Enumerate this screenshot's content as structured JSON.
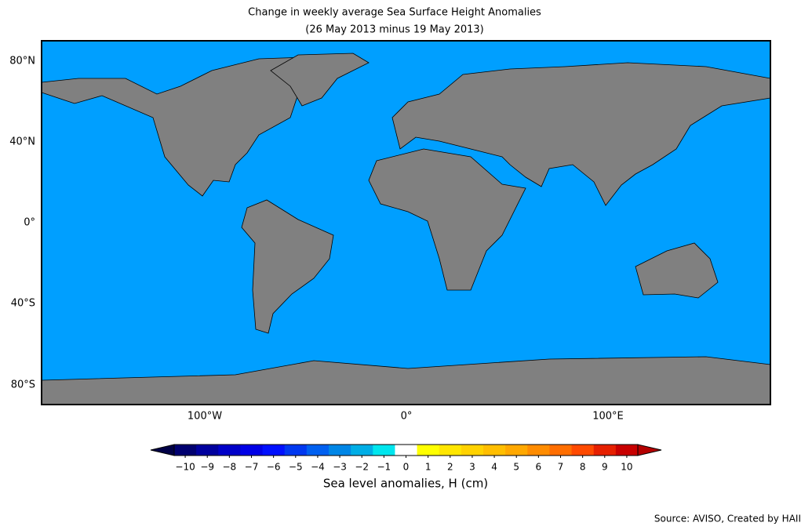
{
  "title": "Change in weekly average Sea Surface Height Anomalies",
  "subtitle": "(26 May 2013 minus 19 May 2013)",
  "axes": {
    "lat_labels": [
      "80°N",
      "40°N",
      "0°",
      "40°S",
      "80°S"
    ],
    "lon_labels": [
      "100°W",
      "0°",
      "100°E"
    ]
  },
  "colorbar": {
    "ticks": [
      {
        "value": -10,
        "label": "−10"
      },
      {
        "value": -9,
        "label": "−9"
      },
      {
        "value": -8,
        "label": "−8"
      },
      {
        "value": -7,
        "label": "−7"
      },
      {
        "value": -6,
        "label": "−6"
      },
      {
        "value": -5,
        "label": "−5"
      },
      {
        "value": -4,
        "label": "−4"
      },
      {
        "value": -3,
        "label": "−3"
      },
      {
        "value": -2,
        "label": "−2"
      },
      {
        "value": -1,
        "label": "−1"
      },
      0,
      1,
      2,
      3,
      4,
      5,
      6,
      7,
      8,
      9,
      10
    ],
    "colors": [
      "#000070",
      "#00009e",
      "#0000c8",
      "#0000e6",
      "#0010ff",
      "#0038f0",
      "#0060f0",
      "#0086e6",
      "#00aee6",
      "#00e6ee",
      "#ffffff",
      "#ffff00",
      "#ffe600",
      "#ffd200",
      "#ffbe00",
      "#ffa800",
      "#ff8c00",
      "#ff6e00",
      "#ff4a00",
      "#e62000",
      "#c80000"
    ],
    "under_color": "#000046",
    "over_color": "#b40000",
    "label": "Sea level anomalies, H (cm)"
  },
  "source": "Source: AVISO, Created by HAII"
}
